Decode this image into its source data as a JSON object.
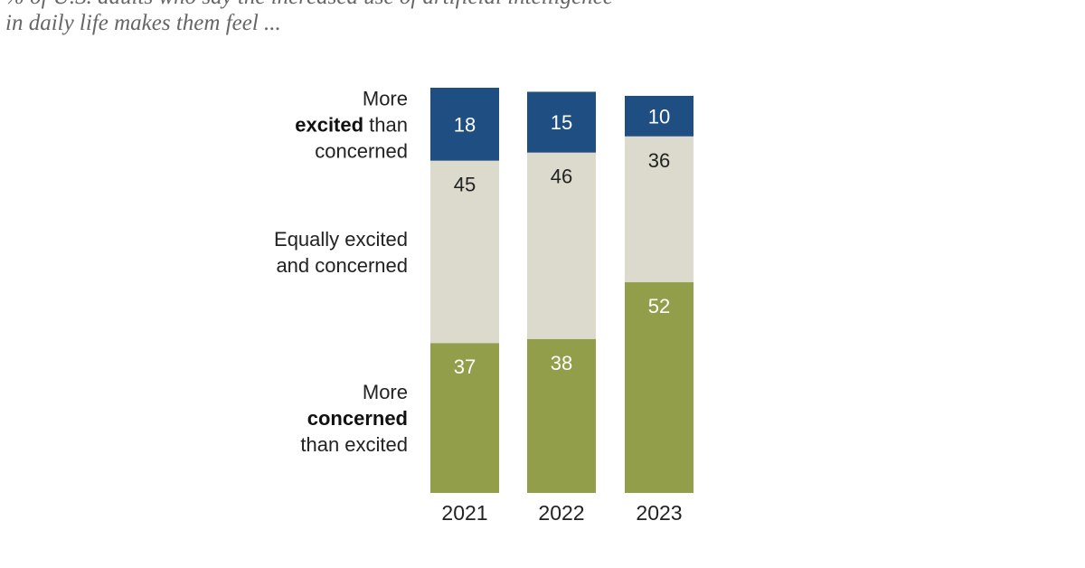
{
  "subtitle": {
    "line1": "% of U.S. adults who say the increased use of artificial intelligence",
    "line2": "in daily life makes them feel ..."
  },
  "chart_data": {
    "type": "bar",
    "stacked": true,
    "normalized": true,
    "categories": [
      "2021",
      "2022",
      "2023"
    ],
    "series": [
      {
        "name": "More excited than concerned",
        "label_lines": [
          [
            {
              "text": "More",
              "bold": false
            }
          ],
          [
            {
              "text": "excited",
              "bold": true
            },
            {
              "text": " than",
              "bold": false
            }
          ],
          [
            {
              "text": "concerned",
              "bold": false
            }
          ]
        ],
        "color": "#1f4e82",
        "label_color": "#ffffff",
        "values": [
          18,
          15,
          10
        ]
      },
      {
        "name": "Equally excited and concerned",
        "label_lines": [
          [
            {
              "text": "Equally excited",
              "bold": false
            }
          ],
          [
            {
              "text": "and concerned",
              "bold": false
            }
          ]
        ],
        "color": "#dcdacc",
        "label_color": "#222222",
        "values": [
          45,
          46,
          36
        ]
      },
      {
        "name": "More concerned than excited",
        "label_lines": [
          [
            {
              "text": "More",
              "bold": false
            }
          ],
          [
            {
              "text": "concerned",
              "bold": true
            }
          ],
          [
            {
              "text": "than excited",
              "bold": false
            }
          ]
        ],
        "color": "#939e4b",
        "label_color": "#ffffff",
        "values": [
          37,
          38,
          52
        ]
      }
    ],
    "ylim": [
      0,
      100
    ],
    "grid": false,
    "legend": "left"
  }
}
